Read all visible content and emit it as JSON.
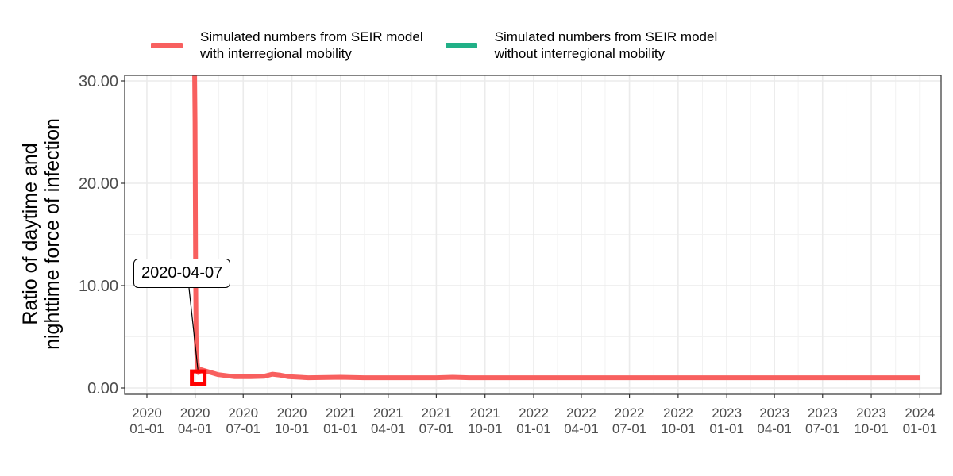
{
  "chart_data": {
    "type": "line",
    "title": "",
    "xlabel": "",
    "ylabel": "Ratio of daytime and\nnighttime force of infection",
    "ylim": [
      0,
      30
    ],
    "xlim": [
      "2019-11-20",
      "2024-02-10"
    ],
    "grid": true,
    "legend_position": "top",
    "y_ticks": [
      {
        "value": 0,
        "label": "0.00"
      },
      {
        "value": 10,
        "label": "10.00"
      },
      {
        "value": 20,
        "label": "20.00"
      },
      {
        "value": 30,
        "label": "30.00"
      }
    ],
    "x_ticks": [
      {
        "date": "2020-01-01",
        "label_year": "2020",
        "label_md": "01-01"
      },
      {
        "date": "2020-04-01",
        "label_year": "2020",
        "label_md": "04-01"
      },
      {
        "date": "2020-07-01",
        "label_year": "2020",
        "label_md": "07-01"
      },
      {
        "date": "2020-10-01",
        "label_year": "2020",
        "label_md": "10-01"
      },
      {
        "date": "2021-01-01",
        "label_year": "2021",
        "label_md": "01-01"
      },
      {
        "date": "2021-04-01",
        "label_year": "2021",
        "label_md": "04-01"
      },
      {
        "date": "2021-07-01",
        "label_year": "2021",
        "label_md": "07-01"
      },
      {
        "date": "2021-10-01",
        "label_year": "2021",
        "label_md": "10-01"
      },
      {
        "date": "2022-01-01",
        "label_year": "2022",
        "label_md": "01-01"
      },
      {
        "date": "2022-04-01",
        "label_year": "2022",
        "label_md": "04-01"
      },
      {
        "date": "2022-07-01",
        "label_year": "2022",
        "label_md": "07-01"
      },
      {
        "date": "2022-10-01",
        "label_year": "2022",
        "label_md": "10-01"
      },
      {
        "date": "2023-01-01",
        "label_year": "2023",
        "label_md": "01-01"
      },
      {
        "date": "2023-04-01",
        "label_year": "2023",
        "label_md": "04-01"
      },
      {
        "date": "2023-07-01",
        "label_year": "2023",
        "label_md": "07-01"
      },
      {
        "date": "2023-10-01",
        "label_year": "2023",
        "label_md": "10-01"
      },
      {
        "date": "2024-01-01",
        "label_year": "2024",
        "label_md": "01-01"
      }
    ],
    "series": [
      {
        "name": "Simulated numbers from SEIR model\nwith interregional mobility",
        "color": "#F8605F",
        "points": [
          {
            "x": "2020-03-31",
            "y": 32
          },
          {
            "x": "2020-04-01",
            "y": 26
          },
          {
            "x": "2020-04-02",
            "y": 12
          },
          {
            "x": "2020-04-03",
            "y": 5
          },
          {
            "x": "2020-04-05",
            "y": 2.5
          },
          {
            "x": "2020-04-07",
            "y": 1.5
          },
          {
            "x": "2020-04-12",
            "y": 1.8
          },
          {
            "x": "2020-04-25",
            "y": 1.6
          },
          {
            "x": "2020-05-15",
            "y": 1.3
          },
          {
            "x": "2020-06-15",
            "y": 1.1
          },
          {
            "x": "2020-07-15",
            "y": 1.1
          },
          {
            "x": "2020-08-10",
            "y": 1.15
          },
          {
            "x": "2020-08-25",
            "y": 1.35
          },
          {
            "x": "2020-09-10",
            "y": 1.25
          },
          {
            "x": "2020-09-25",
            "y": 1.1
          },
          {
            "x": "2020-11-01",
            "y": 1.0
          },
          {
            "x": "2021-01-01",
            "y": 1.05
          },
          {
            "x": "2021-02-15",
            "y": 1.0
          },
          {
            "x": "2021-07-01",
            "y": 1.0
          },
          {
            "x": "2021-08-01",
            "y": 1.05
          },
          {
            "x": "2021-09-01",
            "y": 1.0
          },
          {
            "x": "2022-06-01",
            "y": 1.0
          },
          {
            "x": "2023-06-01",
            "y": 1.0
          },
          {
            "x": "2024-01-01",
            "y": 1.0
          }
        ]
      },
      {
        "name": "Simulated numbers from SEIR model\nwithout interregional mobility",
        "color": "#21B087",
        "points": []
      }
    ],
    "annotations": [
      {
        "text": "2020-04-07",
        "x": "2020-04-07",
        "y": 1.0,
        "marker": "square",
        "marker_color": "#FF0000"
      }
    ]
  }
}
